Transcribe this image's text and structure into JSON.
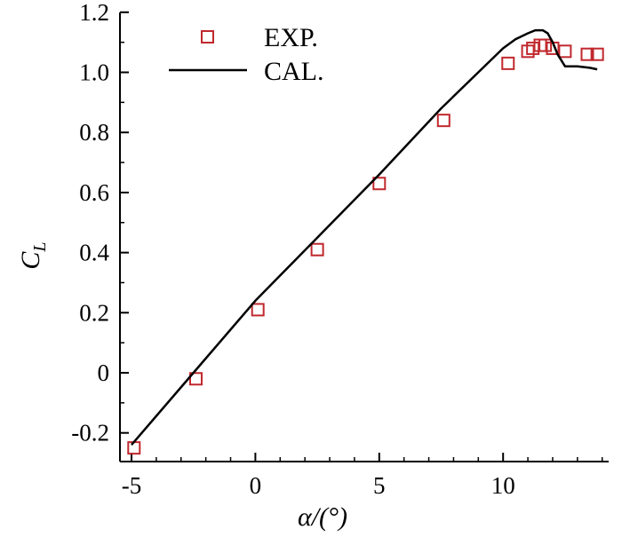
{
  "chart_data": {
    "type": "line",
    "xlabel": "α/(°)",
    "ylabel": "C",
    "ylabel_sub": "L",
    "xlim": [
      -5,
      14
    ],
    "ylim": [
      -0.28,
      1.2
    ],
    "xticks": [
      -5,
      0,
      5,
      10
    ],
    "xtick_labels": [
      "-5",
      "0",
      "5",
      "10"
    ],
    "yticks": [
      -0.2,
      0,
      0.2,
      0.4,
      0.6,
      0.8,
      1.0,
      1.2
    ],
    "ytick_labels": [
      "-0.2",
      "0",
      "0.2",
      "0.4",
      "0.6",
      "0.8",
      "1.0",
      "1.2"
    ],
    "legend_position": "top-left",
    "grid": false,
    "series": [
      {
        "name": "EXP.",
        "kind": "scatter",
        "marker": "square",
        "color": "#c0282d",
        "x": [
          -4.9,
          -2.4,
          0.1,
          2.5,
          5.0,
          7.6,
          10.2,
          11.0,
          11.2,
          11.5,
          11.7,
          12.0,
          12.5,
          13.4,
          13.8
        ],
        "y": [
          -0.25,
          -0.02,
          0.21,
          0.41,
          0.63,
          0.84,
          1.03,
          1.07,
          1.08,
          1.09,
          1.09,
          1.08,
          1.07,
          1.06,
          1.06
        ]
      },
      {
        "name": "CAL.",
        "kind": "line",
        "color": "#000000",
        "x": [
          -5.0,
          -2.5,
          0.0,
          2.5,
          5.0,
          7.5,
          10.0,
          10.5,
          11.0,
          11.3,
          11.6,
          11.8,
          12.0,
          12.2,
          12.5,
          13.0,
          13.5,
          13.8
        ],
        "y": [
          -0.24,
          0.0,
          0.24,
          0.45,
          0.66,
          0.88,
          1.08,
          1.11,
          1.13,
          1.14,
          1.14,
          1.13,
          1.1,
          1.06,
          1.02,
          1.02,
          1.015,
          1.01
        ]
      }
    ]
  }
}
